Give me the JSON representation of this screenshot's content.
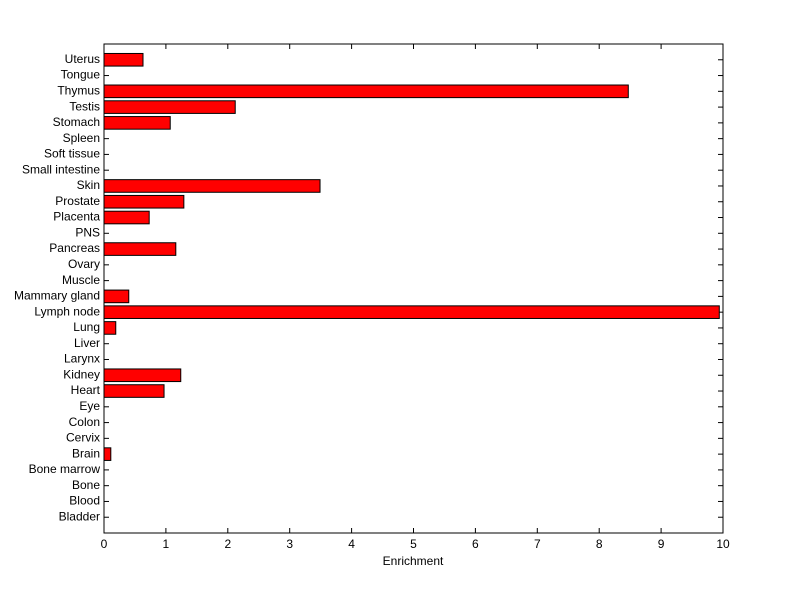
{
  "chart_data": {
    "type": "barh",
    "xlabel": "Enrichment",
    "categories": [
      "Bladder",
      "Blood",
      "Bone",
      "Bone marrow",
      "Brain",
      "Cervix",
      "Colon",
      "Eye",
      "Heart",
      "Kidney",
      "Larynx",
      "Liver",
      "Lung",
      "Lymph node",
      "Mammary gland",
      "Muscle",
      "Ovary",
      "Pancreas",
      "PNS",
      "Placenta",
      "Prostate",
      "Skin",
      "Small intestine",
      "Soft tissue",
      "Spleen",
      "Stomach",
      "Testis",
      "Thymus",
      "Tongue",
      "Uterus"
    ],
    "values": [
      0,
      0,
      0,
      0,
      0.11,
      0,
      0,
      0,
      0.97,
      1.24,
      0,
      0,
      0.19,
      9.94,
      0.4,
      0,
      0,
      1.16,
      0,
      0.73,
      1.29,
      3.49,
      0,
      0,
      0,
      1.07,
      2.12,
      8.47,
      0,
      0.63
    ],
    "color": "#ff0000",
    "xlim": [
      0,
      10
    ],
    "xticks": [
      0,
      1,
      2,
      3,
      4,
      5,
      6,
      7,
      8,
      9,
      10
    ]
  }
}
